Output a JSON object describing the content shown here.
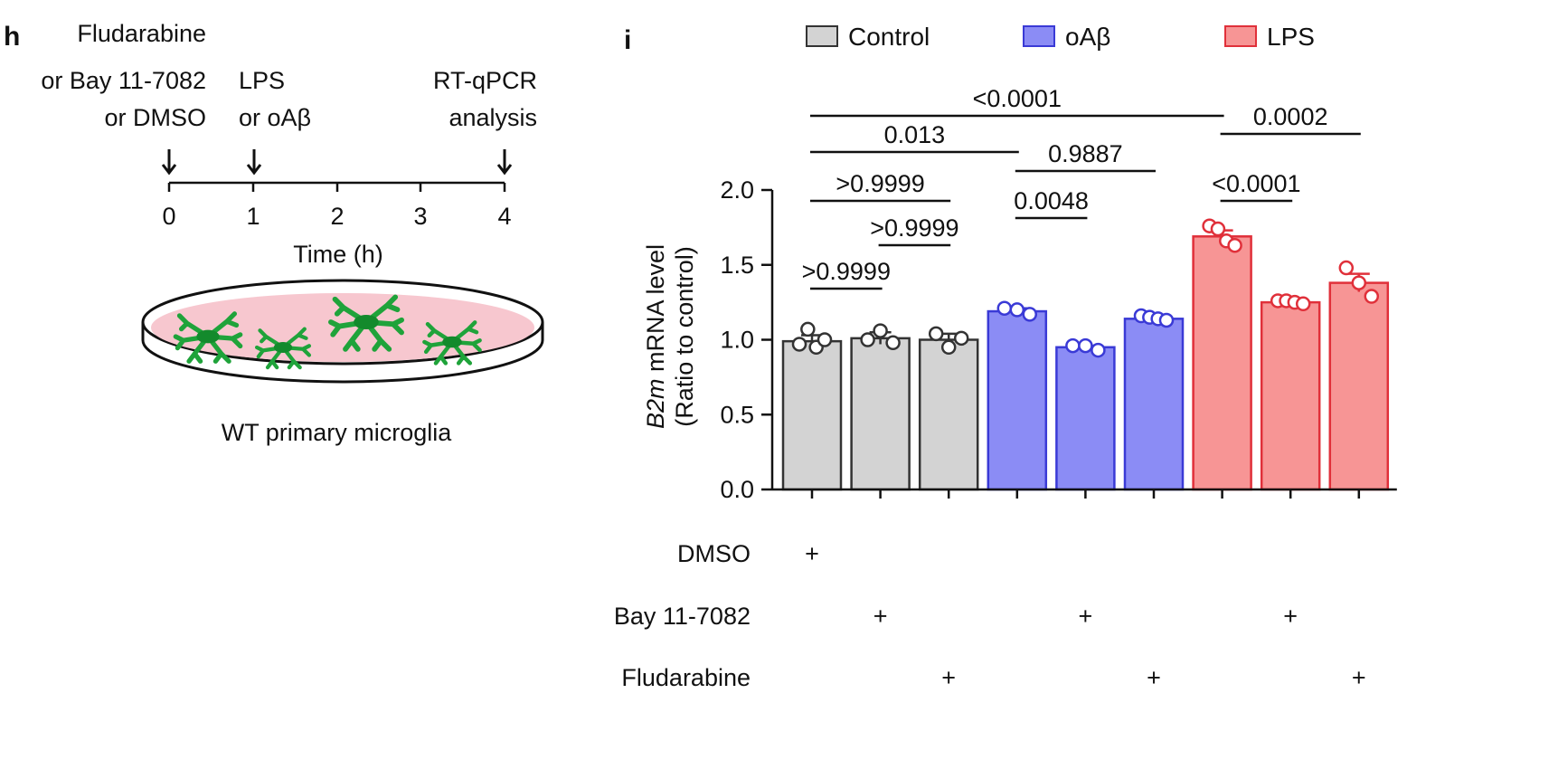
{
  "panel_h": {
    "letter": "h",
    "steps": [
      {
        "lines": [
          "Fludarabine",
          "or Bay 11-7082",
          "or DMSO"
        ],
        "at": 0
      },
      {
        "lines": [
          "LPS",
          "or oAβ"
        ],
        "at": 1
      },
      {
        "lines": [
          "RT-qPCR",
          "analysis"
        ],
        "at": 4
      }
    ],
    "ticks": [
      "0",
      "1",
      "2",
      "3",
      "4"
    ],
    "xlabel": "Time (h)",
    "dish_label": "WT primary microglia",
    "colors": {
      "dish": "#f7c7cf",
      "cells": "#1fa33a"
    }
  },
  "panel_i": {
    "letter": "i",
    "treatment_rows": [
      {
        "label": "DMSO",
        "bars": [
          0
        ]
      },
      {
        "label": "Bay 11-7082",
        "bars": [
          1,
          4,
          7
        ]
      },
      {
        "label": "Fludarabine",
        "bars": [
          2,
          5,
          8
        ]
      }
    ],
    "plus_symbol": "+"
  },
  "chart_data": {
    "type": "bar",
    "title": "",
    "xlabel": "",
    "ylabel_italic": "B2m",
    "ylabel_rest": " mRNA level",
    "ylabel_line2": "(Ratio to control)",
    "ylim": [
      0,
      2.0
    ],
    "yticks": [
      "0.0",
      "0.5",
      "1.0",
      "1.5",
      "2.0"
    ],
    "ytick_values": [
      0,
      0.5,
      1.0,
      1.5,
      2.0
    ],
    "legend": [
      {
        "name": "Control",
        "color": "#d3d3d3",
        "edge": "#333333"
      },
      {
        "name": "oAβ",
        "color": "#8b8cf5",
        "edge": "#3a3ad6"
      },
      {
        "name": "LPS",
        "color": "#f79595",
        "edge": "#e0303a"
      }
    ],
    "bars": [
      {
        "group": 0,
        "value": 0.99,
        "sem": 0.04,
        "points": [
          0.97,
          1.07,
          0.95,
          1.0
        ]
      },
      {
        "group": 0,
        "value": 1.01,
        "sem": 0.04,
        "points": [
          1.0,
          1.06,
          0.98
        ]
      },
      {
        "group": 0,
        "value": 1.0,
        "sem": 0.04,
        "points": [
          1.04,
          0.95,
          1.01
        ]
      },
      {
        "group": 1,
        "value": 1.19,
        "sem": 0.02,
        "points": [
          1.21,
          1.2,
          1.17
        ]
      },
      {
        "group": 1,
        "value": 0.95,
        "sem": 0.01,
        "points": [
          0.96,
          0.96,
          0.93
        ]
      },
      {
        "group": 1,
        "value": 1.14,
        "sem": 0.01,
        "points": [
          1.16,
          1.15,
          1.14,
          1.13
        ]
      },
      {
        "group": 2,
        "value": 1.69,
        "sem": 0.04,
        "points": [
          1.76,
          1.74,
          1.66,
          1.63
        ]
      },
      {
        "group": 2,
        "value": 1.25,
        "sem": 0.01,
        "points": [
          1.26,
          1.26,
          1.25,
          1.24
        ]
      },
      {
        "group": 2,
        "value": 1.38,
        "sem": 0.06,
        "points": [
          1.48,
          1.38,
          1.29
        ]
      }
    ],
    "comparisons": [
      {
        "from": 0,
        "to": 6,
        "label": "<0.0001"
      },
      {
        "from": 6,
        "to": 8,
        "label": "0.0002"
      },
      {
        "from": 0,
        "to": 3,
        "label": "0.013"
      },
      {
        "from": 3,
        "to": 5,
        "label": "0.9887"
      },
      {
        "from": 0,
        "to": 2,
        "label": ">0.9999"
      },
      {
        "from": 6,
        "to": 7,
        "label": "<0.0001"
      },
      {
        "from": 3,
        "to": 4,
        "label": "0.0048"
      },
      {
        "from": 1,
        "to": 2,
        "label": ">0.9999"
      },
      {
        "from": 0,
        "to": 1,
        "label": ">0.9999"
      }
    ]
  }
}
